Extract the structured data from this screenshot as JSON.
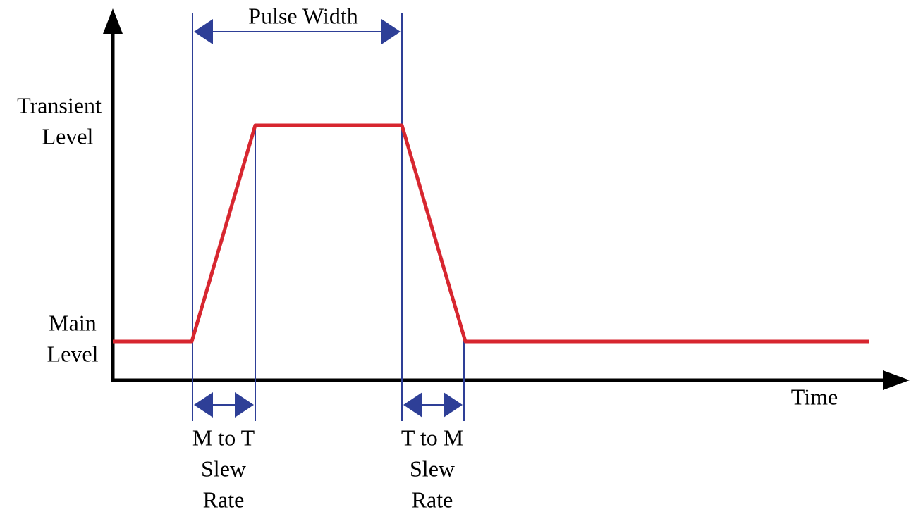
{
  "labels": {
    "pulse_width": "Pulse Width",
    "transient_level": [
      "Transient",
      "Level"
    ],
    "main_level": [
      "Main",
      "Level"
    ],
    "time": "Time",
    "m_to_t": [
      "M to T",
      "Slew",
      "Rate"
    ],
    "t_to_m": [
      "T to M",
      "Slew",
      "Rate"
    ]
  }
}
